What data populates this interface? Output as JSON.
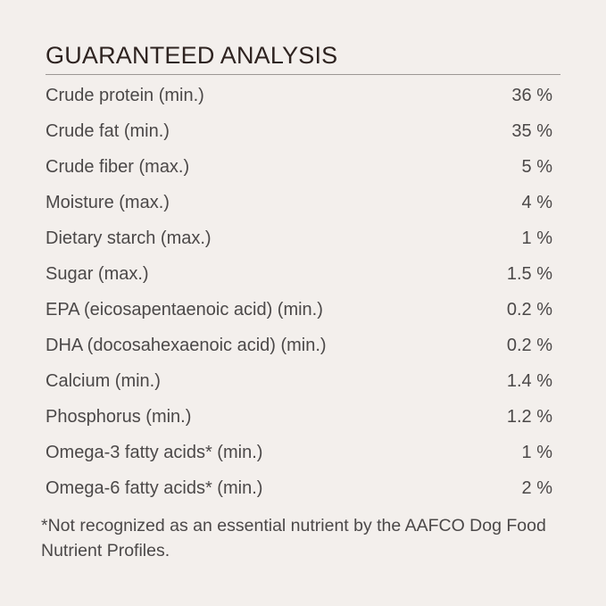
{
  "title": "GUARANTEED ANALYSIS",
  "rows": [
    {
      "label": "Crude protein (min.)",
      "value": "36 %"
    },
    {
      "label": "Crude fat (min.)",
      "value": "35 %"
    },
    {
      "label": "Crude fiber (max.)",
      "value": "5 %"
    },
    {
      "label": "Moisture (max.)",
      "value": "4 %"
    },
    {
      "label": "Dietary starch (max.)",
      "value": "1 %"
    },
    {
      "label": "Sugar (max.)",
      "value": "1.5 %"
    },
    {
      "label": "EPA (eicosapentaenoic acid) (min.)",
      "value": "0.2 %"
    },
    {
      "label": "DHA (docosahexaenoic acid) (min.)",
      "value": "0.2 %"
    },
    {
      "label": "Calcium (min.)",
      "value": "1.4 %"
    },
    {
      "label": "Phosphorus (min.)",
      "value": "1.2 %"
    },
    {
      "label": "Omega-3 fatty acids* (min.)",
      "value": "1 %"
    },
    {
      "label": "Omega-6 fatty acids* (min.)",
      "value": "2 %"
    }
  ],
  "footnote": "*Not recognized as an essential nutrient by the AAFCO Dog Food Nutrient Profiles.",
  "colors": {
    "background": "#f3efec",
    "title": "#2e2320",
    "text": "#4b4848"
  }
}
